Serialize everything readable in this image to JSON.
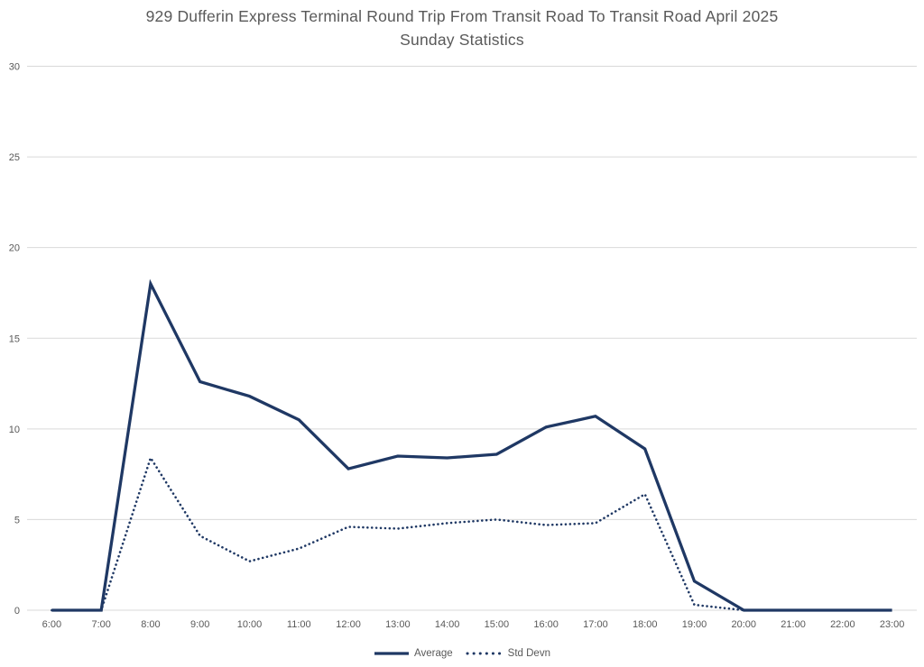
{
  "colors": {
    "line": "#1f3864",
    "grid": "#d9d9d9",
    "axis_text": "#595959",
    "background": "#ffffff"
  },
  "chart_data": {
    "type": "line",
    "title": "929 Dufferin Express Terminal Round Trip From Transit Road To Transit Road April 2025",
    "subtitle": "Sunday Statistics",
    "categories": [
      "6:00",
      "7:00",
      "8:00",
      "9:00",
      "10:00",
      "11:00",
      "12:00",
      "13:00",
      "14:00",
      "15:00",
      "16:00",
      "17:00",
      "18:00",
      "19:00",
      "20:00",
      "21:00",
      "22:00",
      "23:00"
    ],
    "series": [
      {
        "name": "Average",
        "style": "solid",
        "values": [
          0,
          0,
          18,
          12.6,
          11.8,
          10.5,
          7.8,
          8.5,
          8.4,
          8.6,
          10.1,
          10.7,
          8.9,
          1.6,
          0,
          0,
          0,
          0
        ]
      },
      {
        "name": "Std Devn",
        "style": "dotted",
        "values": [
          0,
          0,
          8.4,
          4.1,
          2.7,
          3.4,
          4.6,
          4.5,
          4.8,
          5.0,
          4.7,
          4.8,
          6.4,
          0.3,
          0,
          0,
          0,
          0
        ]
      }
    ],
    "xlabel": "",
    "ylabel": "",
    "ylim": [
      0,
      30
    ],
    "yticks": [
      0,
      5,
      10,
      15,
      20,
      25,
      30
    ],
    "grid": true,
    "legend_position": "bottom"
  }
}
